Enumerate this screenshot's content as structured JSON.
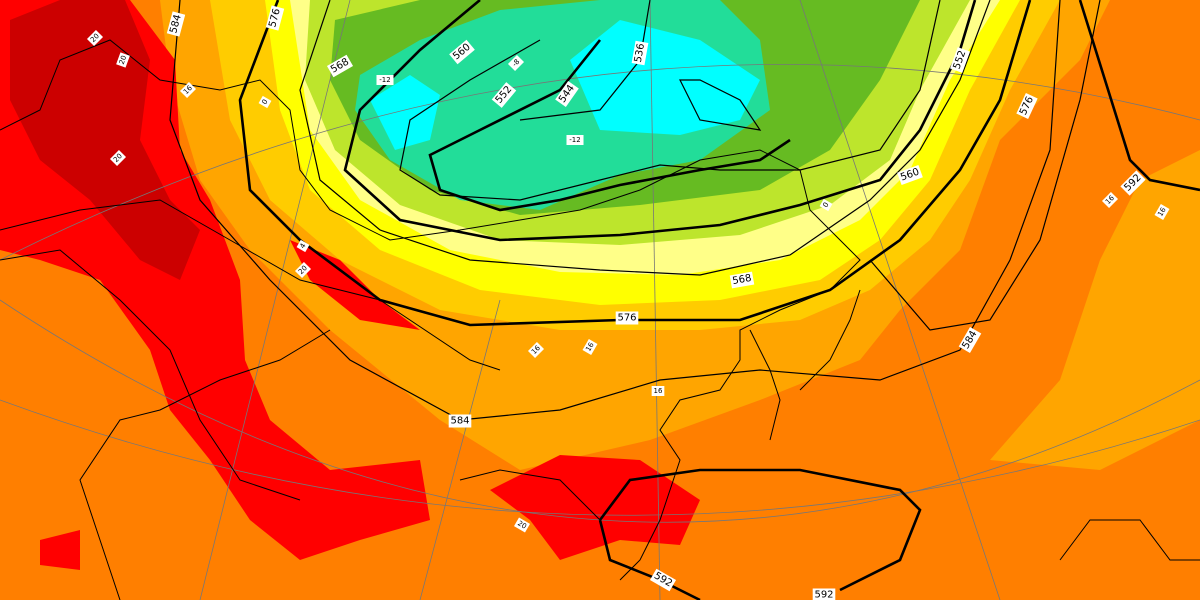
{
  "map": {
    "type": "500 hPa geopotential height (dam) contours over 850 hPa temperature shading",
    "colors": {
      "dark_red": "#cc0000",
      "red": "#ff0000",
      "orange": "#ff7f00",
      "light_orange": "#ffa500",
      "gold": "#ffcc00",
      "yellow": "#ffff00",
      "pale_yellow": "#ffff88",
      "yellow_green": "#bde52c",
      "green": "#66bb22",
      "teal": "#22dd99",
      "cyan": "#00ffff"
    },
    "height_labels": [
      "584",
      "576",
      "568",
      "560",
      "552",
      "544",
      "536",
      "552",
      "576",
      "560",
      "568",
      "576",
      "584",
      "584",
      "592",
      "592",
      "592"
    ],
    "temp_labels": [
      "20",
      "20",
      "16",
      "20",
      "0",
      "4",
      "20",
      "-12",
      "-8",
      "-12",
      "0",
      "16",
      "16",
      "16",
      "20",
      "16",
      "16"
    ]
  }
}
